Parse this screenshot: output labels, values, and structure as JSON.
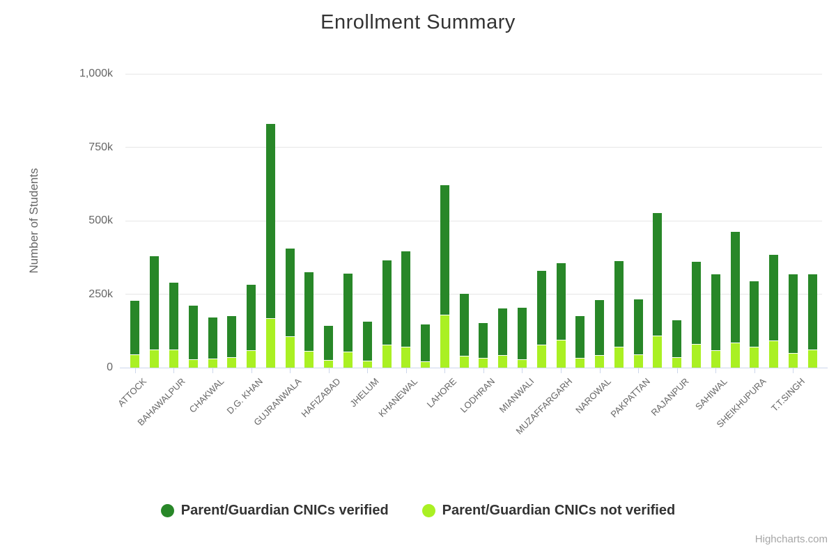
{
  "title": "Enrollment Summary",
  "credits": "Highcharts.com",
  "y_axis": {
    "title": "Number of Students",
    "tick_labels": [
      "0",
      "250k",
      "500k",
      "750k",
      "1,000k"
    ]
  },
  "legend": {
    "items": [
      {
        "label": "Parent/Guardian CNICs verified",
        "color": "#288728"
      },
      {
        "label": "Parent/Guardian CNICs not verified",
        "color": "#aaf023"
      }
    ]
  },
  "colors": {
    "verified": "#288728",
    "not_verified": "#aaf023",
    "grid": "#e6e6e6",
    "axis_line": "#ccd6eb",
    "axis_text": "#666666",
    "title_text": "#333333",
    "credits_text": "#a6a6a6"
  },
  "chart_data": {
    "type": "bar",
    "stacked": true,
    "title": "Enrollment Summary",
    "xlabel": "",
    "ylabel": "Number of Students",
    "unit": "thousand students (k)",
    "ylim_k": [
      0,
      1000
    ],
    "y_ticks_k": [
      0,
      250,
      500,
      750,
      1000
    ],
    "grid": "horizontal",
    "legend_position": "bottom",
    "n_bars": 36,
    "label_every_nth_bar": 2,
    "visible_category_labels": [
      "ATTOCK",
      "BAHAWALPUR",
      "CHAKWAL",
      "D.G. KHAN",
      "GUJRANWALA",
      "HAFIZABAD",
      "JHELUM",
      "KHANEWAL",
      "LAHORE",
      "LODHRAN",
      "MIANWALI",
      "MUZAFFARGARH",
      "NAROWAL",
      "PAKPATTAN",
      "RAJANPUR",
      "SAHIWAL",
      "SHEIKHUPURA",
      "T.T.SINGH"
    ],
    "series": [
      {
        "name": "Parent/Guardian CNICs verified",
        "color": "#288728",
        "values_k": [
          184,
          321,
          229,
          186,
          141,
          141,
          226,
          664,
          302,
          270,
          118,
          267,
          134,
          290,
          327,
          128,
          444,
          214,
          120,
          162,
          178,
          253,
          262,
          145,
          190,
          293,
          190,
          420,
          128,
          283,
          260,
          378,
          226,
          295,
          270,
          258
        ]
      },
      {
        "name": "Parent/Guardian CNICs not verified",
        "color": "#aaf023",
        "values_k": [
          42,
          60,
          59,
          26,
          28,
          33,
          56,
          166,
          105,
          55,
          24,
          51,
          22,
          76,
          68,
          18,
          178,
          38,
          30,
          41,
          25,
          77,
          92,
          30,
          40,
          69,
          42,
          107,
          32,
          79,
          58,
          83,
          69,
          90,
          48,
          60
        ]
      }
    ]
  }
}
